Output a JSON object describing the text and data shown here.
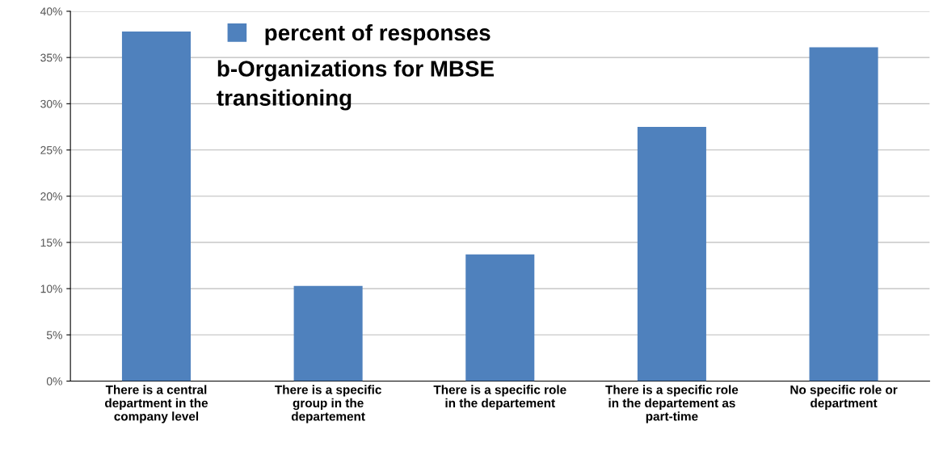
{
  "chart_data": {
    "type": "bar",
    "title": "b-Organizations for MBSE\ntransitioning",
    "categories": [
      "There is a central\ndepartment in the\ncompany level",
      "There is a specific\ngroup in the\ndepartement",
      "There is a specific role\nin the departement",
      "There is a specific role\nin the departement as\npart-time",
      "No specific role or\ndepartment"
    ],
    "series": [
      {
        "name": "percent of responses",
        "color": "#4f81bd",
        "values": [
          37.8,
          10.3,
          13.7,
          27.5,
          36.1
        ]
      }
    ],
    "ylim": [
      0,
      40
    ],
    "yticks": [
      {
        "value": 0,
        "label": "0%"
      },
      {
        "value": 5,
        "label": "5%"
      },
      {
        "value": 10,
        "label": "10%"
      },
      {
        "value": 15,
        "label": "15%"
      },
      {
        "value": 20,
        "label": "20%"
      },
      {
        "value": 25,
        "label": "25%"
      },
      {
        "value": 30,
        "label": "30%"
      },
      {
        "value": 35,
        "label": "35%"
      },
      {
        "value": 40,
        "label": "40%"
      }
    ],
    "grid": "y",
    "legend": "top"
  }
}
